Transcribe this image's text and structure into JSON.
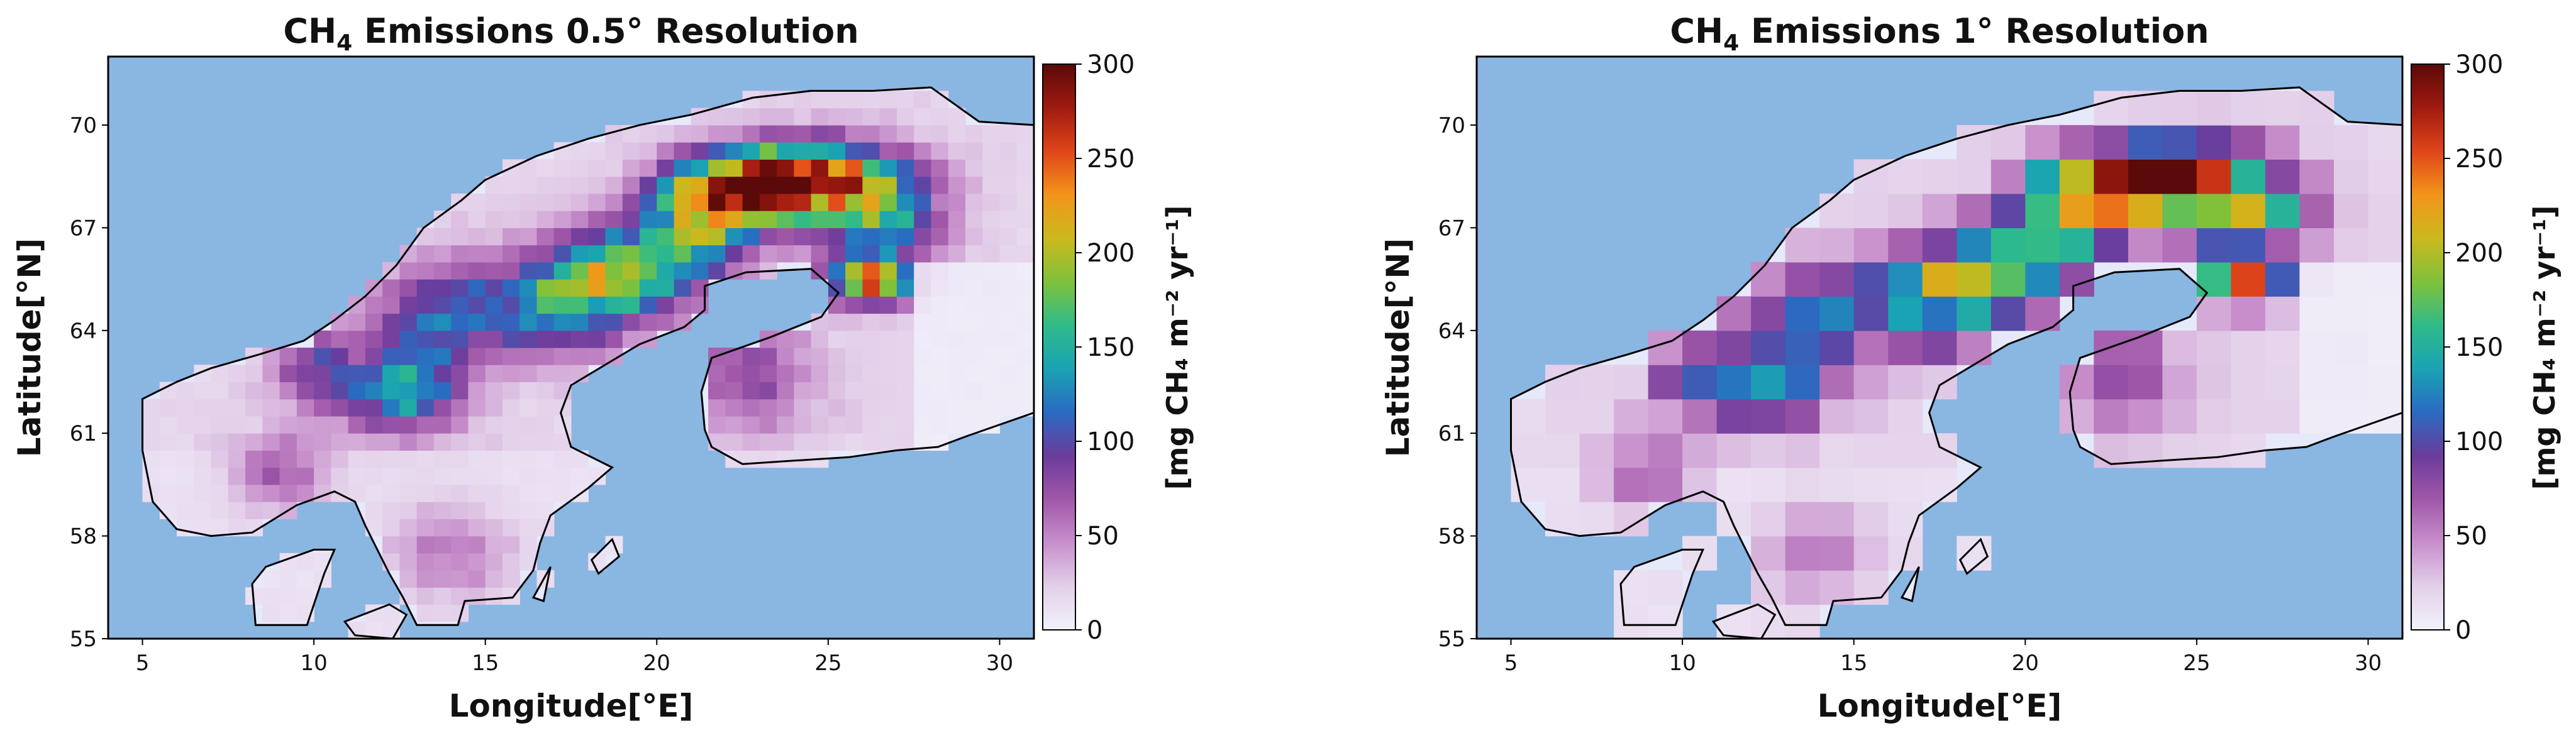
{
  "colors": {
    "ocean": "#8ab6e2",
    "land_zero": "#e6e9f9",
    "coast": "#000000"
  },
  "colormap": [
    "#f2f2fb",
    "#e3cfe9",
    "#c78fcb",
    "#a057a8",
    "#6b3c9c",
    "#2a6bc2",
    "#1aa3b3",
    "#2fbb8a",
    "#7fc13b",
    "#cbb91d",
    "#f3941a",
    "#e0451a",
    "#a01a10",
    "#5a0a08"
  ],
  "chart_data": [
    {
      "type": "heatmap",
      "title_pre": "CH",
      "title_sub": "4",
      "title_post": " Emissions 0.5° Resolution",
      "xlabel": "Longitude[°E]",
      "ylabel": "Latitude[°N]",
      "xlim": [
        4,
        31
      ],
      "ylim": [
        55,
        72
      ],
      "xticks": [
        "5",
        "10",
        "15",
        "20",
        "25",
        "30"
      ],
      "yticks": [
        "55",
        "58",
        "61",
        "64",
        "67",
        "70"
      ],
      "cell_size_deg": 0.5,
      "colorbar": {
        "min": 0,
        "max": 300,
        "ticks": [
          "0",
          "50",
          "100",
          "150",
          "200",
          "250",
          "300"
        ],
        "label": "[mg CH₄ m⁻² yr⁻¹]"
      }
    },
    {
      "type": "heatmap",
      "title_pre": "CH",
      "title_sub": "4",
      "title_post": " Emissions 1° Resolution",
      "xlabel": "Longitude[°E]",
      "ylabel": "Latitude[°N]",
      "xlim": [
        4,
        31
      ],
      "ylim": [
        55,
        72
      ],
      "xticks": [
        "5",
        "10",
        "15",
        "20",
        "25",
        "30"
      ],
      "yticks": [
        "55",
        "58",
        "61",
        "64",
        "67",
        "70"
      ],
      "cell_size_deg": 1,
      "colorbar": {
        "min": 0,
        "max": 300,
        "ticks": [
          "0",
          "50",
          "100",
          "150",
          "200",
          "250",
          "300"
        ],
        "label": "[mg CH₄ m⁻² yr⁻¹]"
      }
    }
  ]
}
